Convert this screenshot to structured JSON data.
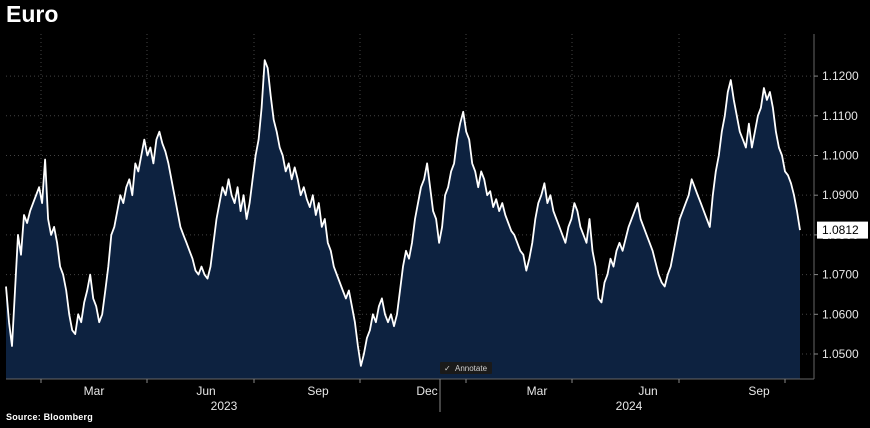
{
  "title": "Euro",
  "source": "Source: Bloomberg",
  "annotate_label": "Annotate",
  "chart_data": {
    "type": "area",
    "title": "Euro",
    "series": [
      {
        "values": [
          1.067,
          1.058,
          1.052,
          1.066,
          1.08,
          1.075,
          1.085,
          1.083,
          1.086,
          1.088,
          1.09,
          1.092,
          1.088,
          1.099,
          1.084,
          1.08,
          1.082,
          1.078,
          1.072,
          1.07,
          1.066,
          1.06,
          1.056,
          1.055,
          1.06,
          1.058,
          1.063,
          1.066,
          1.07,
          1.064,
          1.062,
          1.058,
          1.06,
          1.066,
          1.072,
          1.08,
          1.082,
          1.086,
          1.09,
          1.088,
          1.092,
          1.094,
          1.09,
          1.098,
          1.096,
          1.1,
          1.104,
          1.1,
          1.102,
          1.098,
          1.104,
          1.106,
          1.103,
          1.101,
          1.098,
          1.094,
          1.09,
          1.086,
          1.082,
          1.08,
          1.078,
          1.076,
          1.074,
          1.071,
          1.07,
          1.072,
          1.07,
          1.069,
          1.072,
          1.078,
          1.084,
          1.088,
          1.092,
          1.09,
          1.094,
          1.09,
          1.088,
          1.092,
          1.086,
          1.09,
          1.084,
          1.088,
          1.094,
          1.1,
          1.104,
          1.112,
          1.124,
          1.122,
          1.115,
          1.109,
          1.106,
          1.102,
          1.1,
          1.096,
          1.098,
          1.094,
          1.097,
          1.094,
          1.09,
          1.092,
          1.089,
          1.087,
          1.09,
          1.085,
          1.088,
          1.082,
          1.084,
          1.078,
          1.076,
          1.072,
          1.07,
          1.068,
          1.066,
          1.064,
          1.066,
          1.062,
          1.058,
          1.052,
          1.047,
          1.05,
          1.054,
          1.056,
          1.06,
          1.058,
          1.062,
          1.064,
          1.06,
          1.058,
          1.06,
          1.057,
          1.06,
          1.066,
          1.072,
          1.076,
          1.074,
          1.078,
          1.084,
          1.088,
          1.092,
          1.094,
          1.098,
          1.092,
          1.086,
          1.084,
          1.078,
          1.082,
          1.09,
          1.092,
          1.096,
          1.098,
          1.104,
          1.108,
          1.111,
          1.106,
          1.104,
          1.098,
          1.096,
          1.092,
          1.096,
          1.094,
          1.09,
          1.091,
          1.087,
          1.089,
          1.086,
          1.088,
          1.085,
          1.083,
          1.081,
          1.08,
          1.078,
          1.076,
          1.075,
          1.071,
          1.074,
          1.078,
          1.084,
          1.088,
          1.09,
          1.093,
          1.088,
          1.09,
          1.086,
          1.084,
          1.082,
          1.08,
          1.078,
          1.082,
          1.084,
          1.088,
          1.086,
          1.082,
          1.08,
          1.078,
          1.084,
          1.076,
          1.072,
          1.064,
          1.063,
          1.068,
          1.07,
          1.074,
          1.072,
          1.076,
          1.078,
          1.076,
          1.079,
          1.082,
          1.084,
          1.086,
          1.088,
          1.084,
          1.082,
          1.08,
          1.078,
          1.076,
          1.073,
          1.07,
          1.068,
          1.067,
          1.07,
          1.072,
          1.076,
          1.08,
          1.084,
          1.086,
          1.088,
          1.09,
          1.094,
          1.092,
          1.09,
          1.088,
          1.086,
          1.084,
          1.082,
          1.09,
          1.096,
          1.1,
          1.106,
          1.11,
          1.116,
          1.119,
          1.114,
          1.11,
          1.106,
          1.104,
          1.102,
          1.108,
          1.102,
          1.106,
          1.11,
          1.112,
          1.117,
          1.114,
          1.116,
          1.112,
          1.106,
          1.102,
          1.1,
          1.096,
          1.095,
          1.093,
          1.09,
          1.086,
          1.0812
        ]
      }
    ],
    "x_tick_labels": [
      "Mar",
      "Jun",
      "Sep",
      "Dec",
      "Mar",
      "Jun",
      "Sep"
    ],
    "x_year_labels": [
      "2023",
      "2024"
    ],
    "y_tick_labels": [
      "1.1200",
      "1.1100",
      "1.1000",
      "1.0900",
      "1.0800",
      "1.0700",
      "1.0600",
      "1.0500"
    ],
    "y_ticks": [
      1.12,
      1.11,
      1.1,
      1.09,
      1.08,
      1.07,
      1.06,
      1.05
    ],
    "ylim": [
      1.0437,
      1.1306
    ],
    "grid": true,
    "last_value": "1.0812",
    "colors": {
      "line": "#ffffff",
      "fill": "#0d2240",
      "grid": "#444444",
      "background": "#000000",
      "badge": "#ffffff"
    }
  }
}
